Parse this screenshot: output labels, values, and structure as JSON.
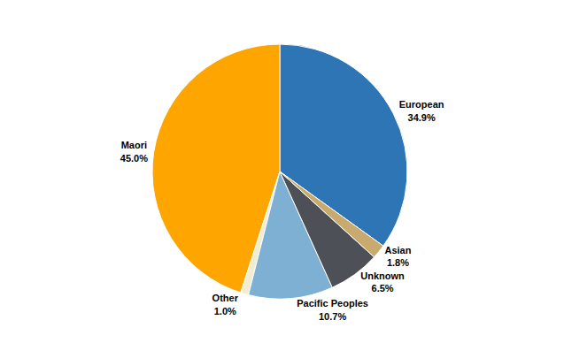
{
  "chart_data": {
    "type": "pie",
    "categories": [
      "European",
      "Maori",
      "Other",
      "Pacific Peoples",
      "Unknown",
      "Asian"
    ],
    "values": [
      34.9,
      45.0,
      1.0,
      10.7,
      6.5,
      1.8
    ],
    "value_labels": [
      "34.9%",
      "45.0%",
      "1.0%",
      "10.7%",
      "6.5%",
      "1.8%"
    ],
    "colors": [
      "#2E75B6",
      "#FFA500",
      "#F0EDD0",
      "#7EB0D4",
      "#4D5057",
      "#C8A96E"
    ],
    "data_labels": true
  }
}
